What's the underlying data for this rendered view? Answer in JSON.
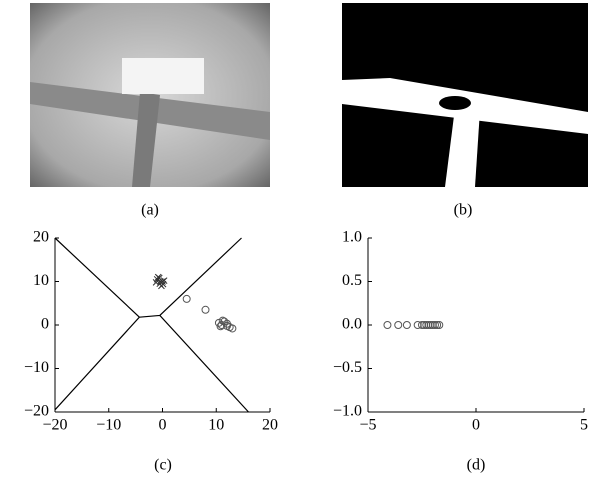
{
  "panel_labels": [
    "(a)",
    "(b)",
    "(c)",
    "(d)"
  ],
  "chart_data": [
    {
      "type": "scatter",
      "xlim": [
        -20,
        20
      ],
      "ylim": [
        -20,
        20
      ],
      "xticks": [
        {
          "value": -20,
          "label": "−20"
        },
        {
          "value": -10,
          "label": "−10"
        },
        0,
        10,
        20
      ],
      "yticks": [
        20,
        10,
        0,
        {
          "value": -10,
          "label": "−10"
        },
        {
          "value": -20,
          "label": "−20"
        }
      ],
      "series": [
        {
          "type": "line",
          "color": "#000000",
          "x": [
            -20,
            -4.3,
            -20,
            null,
            -4.3,
            -0.5,
            null,
            14.7,
            -0.5,
            16
          ],
          "y": [
            20,
            1.8,
            -19.5,
            null,
            1.8,
            2.2,
            null,
            20,
            2.2,
            -20
          ]
        },
        {
          "marker": "x",
          "color": "#333333",
          "x": [
            -1,
            -0.5,
            0,
            -0.8,
            -0.2,
            0.3,
            -1.2,
            -0.6,
            0.1,
            -0.4
          ],
          "y": [
            10.5,
            9.5,
            10,
            11,
            9,
            10.2,
            9.8,
            10.8,
            9.4,
            10
          ]
        },
        {
          "marker": "o",
          "color": "#555555",
          "x": [
            4.5,
            8,
            10.5,
            11,
            11.5,
            12,
            12.5,
            11.2,
            10.8,
            12,
            13
          ],
          "y": [
            6,
            3.5,
            0.5,
            0,
            0.8,
            -0.2,
            -0.5,
            1,
            -0.3,
            0.3,
            -0.8
          ]
        }
      ]
    },
    {
      "type": "scatter",
      "xlim": [
        -5,
        5
      ],
      "ylim": [
        -1,
        1
      ],
      "xticks": [
        {
          "value": -5,
          "label": "−5"
        },
        0,
        5
      ],
      "yticks": [
        {
          "value": 1,
          "label": "1.0"
        },
        0.5,
        {
          "value": 0,
          "label": "0.0"
        },
        {
          "value": -0.5,
          "label": "−0.5"
        },
        {
          "value": -1,
          "label": "−1.0"
        }
      ],
      "series": [
        {
          "marker": "o",
          "color": "#555555",
          "x": [
            -4.1,
            -3.6,
            -3.2,
            -2.7,
            -2.5,
            -2.4,
            -2.3,
            -2.2,
            -2.1,
            -2.0,
            -1.9,
            -1.8,
            -1.7
          ],
          "y": [
            0,
            0,
            0,
            0,
            0,
            0,
            0,
            0,
            0,
            0,
            0,
            0,
            0
          ]
        }
      ]
    }
  ]
}
